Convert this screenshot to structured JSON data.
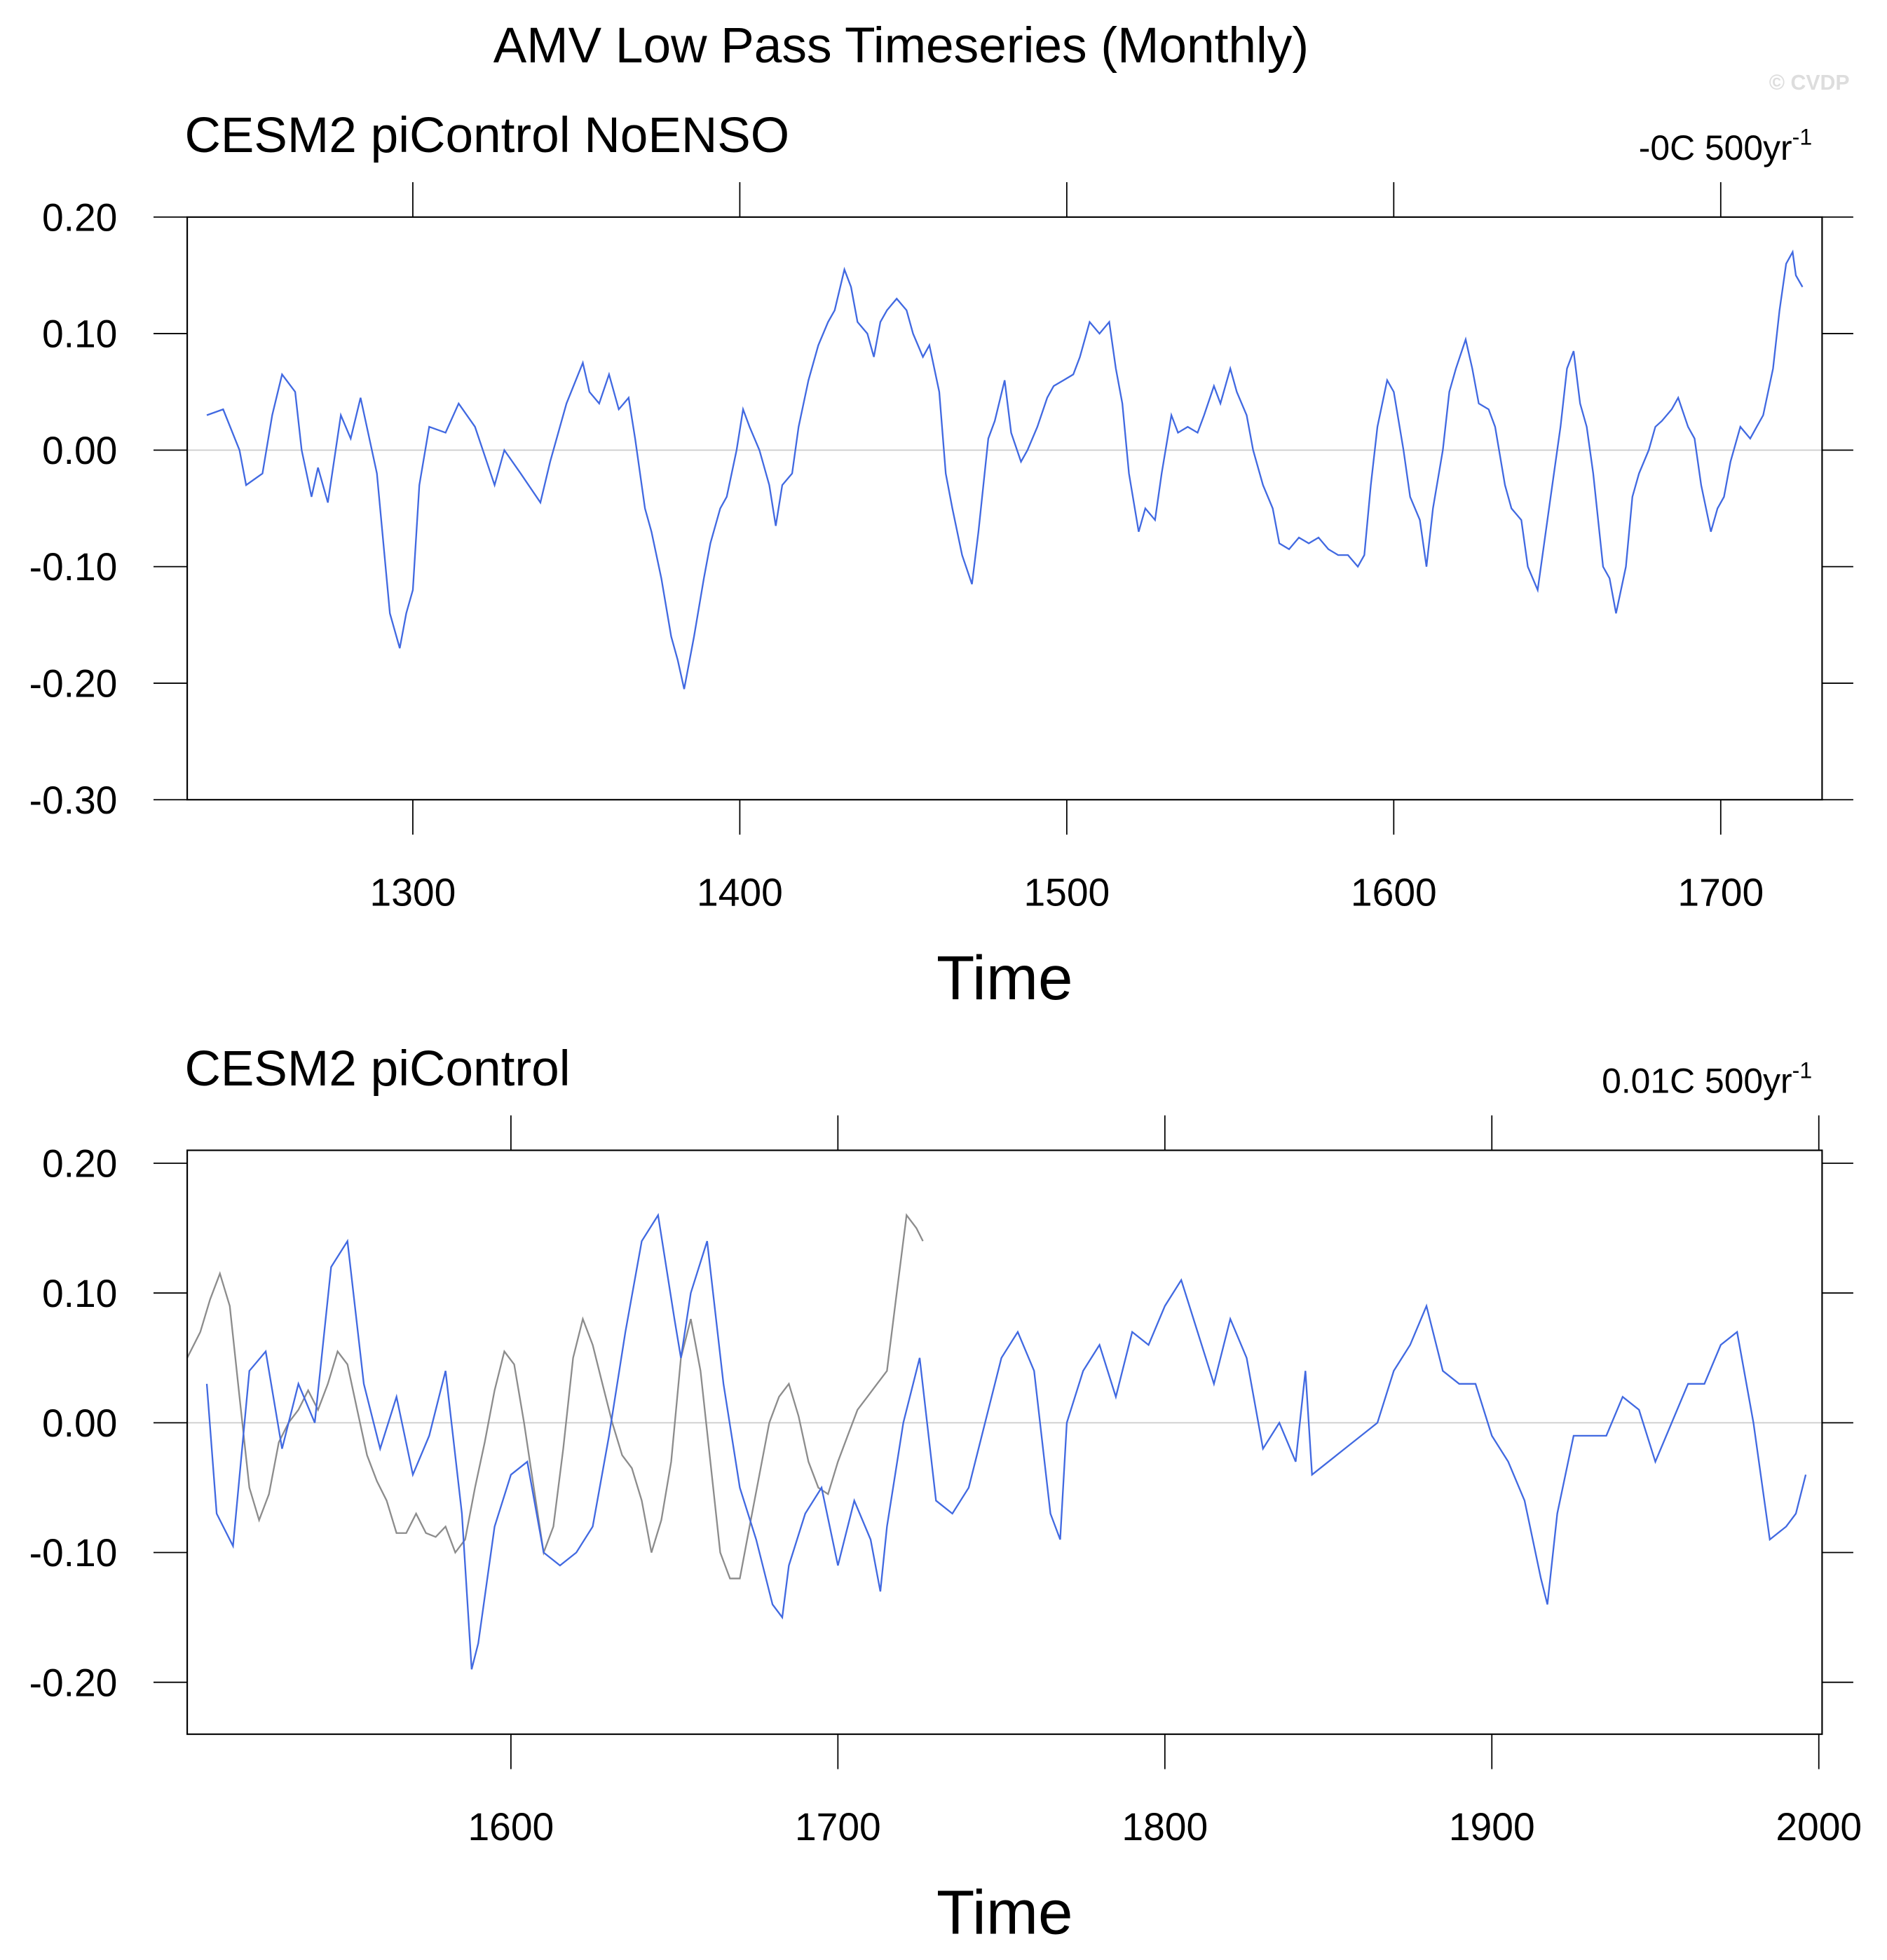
{
  "chart_data": [
    {
      "type": "line",
      "title": "AMV Low Pass Timeseries (Monthly)",
      "credit": "© CVDP",
      "subtitle": "CESM2 piControl NoENSO",
      "trend": "-0C 500yr",
      "trend_sup": "-1",
      "x_label": "Time",
      "xlim": [
        1231,
        1731
      ],
      "ylim": [
        -0.3,
        0.2
      ],
      "xticks": [
        1300,
        1400,
        1500,
        1600,
        1700
      ],
      "yticks": [
        {
          "value": 0.2,
          "label": "0.20"
        },
        {
          "value": 0.1,
          "label": "0.10"
        },
        {
          "value": 0,
          "label": "0.00"
        },
        {
          "value": -0.1,
          "label": "-0.10"
        },
        {
          "value": -0.2,
          "label": "-0.20"
        },
        {
          "value": -0.3,
          "label": "-0.30"
        }
      ],
      "reference_line": 0,
      "series": [
        {
          "color": "#4169e1",
          "x": [
            1237,
            1242,
            1247,
            1249,
            1254,
            1257,
            1260,
            1264,
            1266,
            1269,
            1271,
            1274,
            1278,
            1281,
            1284,
            1289,
            1291,
            1293,
            1296,
            1298,
            1300,
            1302,
            1305,
            1310,
            1314,
            1319,
            1325,
            1328,
            1333,
            1339,
            1342,
            1347,
            1352,
            1354,
            1357,
            1360,
            1363,
            1366,
            1368,
            1371,
            1373,
            1376,
            1379,
            1381,
            1383,
            1386,
            1389,
            1391,
            1394,
            1396,
            1399,
            1401,
            1403,
            1406,
            1409,
            1411,
            1413,
            1416,
            1418,
            1421,
            1424,
            1427,
            1429,
            1432,
            1434,
            1436,
            1439,
            1441,
            1443,
            1445,
            1448,
            1451,
            1453,
            1456,
            1458,
            1461,
            1463,
            1465,
            1468,
            1471,
            1473,
            1476,
            1478,
            1481,
            1483,
            1486,
            1488,
            1491,
            1494,
            1496,
            1499,
            1502,
            1504,
            1507,
            1510,
            1513,
            1515,
            1517,
            1519,
            1522,
            1524,
            1527,
            1529,
            1532,
            1534,
            1537,
            1540,
            1542,
            1545,
            1547,
            1550,
            1552,
            1555,
            1557,
            1560,
            1563,
            1565,
            1568,
            1571,
            1574,
            1577,
            1580,
            1583,
            1586,
            1589,
            1591,
            1593,
            1595,
            1598,
            1600,
            1603,
            1605,
            1608,
            1610,
            1612,
            1615,
            1617,
            1619,
            1622,
            1624,
            1626,
            1629,
            1631,
            1634,
            1636,
            1639,
            1641,
            1644,
            1646,
            1648,
            1651,
            1653,
            1655,
            1657,
            1659,
            1661,
            1664,
            1666,
            1668,
            1671,
            1673,
            1675,
            1678,
            1680,
            1682,
            1685,
            1687,
            1690,
            1692,
            1694,
            1697,
            1699,
            1701,
            1703,
            1706,
            1709,
            1711,
            1713,
            1716,
            1718,
            1720,
            1722,
            1723,
            1725
          ],
          "values": [
            0.03,
            0.035,
            0.0,
            -0.03,
            -0.02,
            0.03,
            0.065,
            0.05,
            0.0,
            -0.04,
            -0.015,
            -0.045,
            0.03,
            0.01,
            0.045,
            -0.02,
            -0.08,
            -0.14,
            -0.17,
            -0.14,
            -0.12,
            -0.03,
            0.02,
            0.015,
            0.04,
            0.02,
            -0.03,
            0.0,
            -0.02,
            -0.045,
            -0.01,
            0.04,
            0.075,
            0.05,
            0.04,
            0.065,
            0.035,
            0.045,
            0.01,
            -0.05,
            -0.07,
            -0.11,
            -0.16,
            -0.18,
            -0.205,
            -0.16,
            -0.11,
            -0.08,
            -0.05,
            -0.04,
            0.0,
            0.035,
            0.02,
            0.0,
            -0.03,
            -0.065,
            -0.03,
            -0.02,
            0.02,
            0.06,
            0.09,
            0.11,
            0.12,
            0.155,
            0.14,
            0.11,
            0.1,
            0.08,
            0.11,
            0.12,
            0.13,
            0.12,
            0.1,
            0.08,
            0.09,
            0.05,
            -0.02,
            -0.05,
            -0.09,
            -0.115,
            -0.07,
            0.01,
            0.025,
            0.06,
            0.015,
            -0.01,
            0.0,
            0.02,
            0.045,
            0.055,
            0.06,
            0.065,
            0.08,
            0.11,
            0.1,
            0.11,
            0.07,
            0.04,
            -0.02,
            -0.07,
            -0.05,
            -0.06,
            -0.02,
            0.03,
            0.015,
            0.02,
            0.015,
            0.03,
            0.055,
            0.04,
            0.07,
            0.05,
            0.03,
            0.0,
            -0.03,
            -0.05,
            -0.08,
            -0.085,
            -0.075,
            -0.08,
            -0.075,
            -0.085,
            -0.09,
            -0.09,
            -0.1,
            -0.09,
            -0.03,
            0.02,
            0.06,
            0.05,
            0.0,
            -0.04,
            -0.06,
            -0.1,
            -0.05,
            0.0,
            0.05,
            0.07,
            0.095,
            0.07,
            0.04,
            0.035,
            0.02,
            -0.03,
            -0.05,
            -0.06,
            -0.1,
            -0.12,
            -0.08,
            -0.04,
            0.02,
            0.07,
            0.085,
            0.04,
            0.02,
            -0.02,
            -0.1,
            -0.11,
            -0.14,
            -0.1,
            -0.04,
            -0.02,
            0.0,
            0.02,
            0.025,
            0.035,
            0.045,
            0.02,
            0.01,
            -0.03,
            -0.07,
            -0.05,
            -0.04,
            -0.01,
            0.02,
            0.01,
            0.02,
            0.03,
            0.07,
            0.12,
            0.16,
            0.17,
            0.15,
            0.14
          ]
        }
      ]
    },
    {
      "type": "line",
      "subtitle": "CESM2 piControl",
      "trend": "0.01C 500yr",
      "trend_sup": "-1",
      "x_label": "Time",
      "xlim": [
        1501,
        2001
      ],
      "ylim": [
        -0.24,
        0.21
      ],
      "xticks": [
        1600,
        1700,
        1800,
        1900,
        2000
      ],
      "yticks": [
        {
          "value": 0.2,
          "label": "0.20"
        },
        {
          "value": 0.1,
          "label": "0.10"
        },
        {
          "value": 0,
          "label": "0.00"
        },
        {
          "value": -0.1,
          "label": "-0.10"
        },
        {
          "value": -0.2,
          "label": "-0.20"
        }
      ],
      "reference_line": 0,
      "series": [
        {
          "color": "#8c8c8c",
          "x": [
            1501,
            1505,
            1508,
            1511,
            1514,
            1517,
            1520,
            1523,
            1526,
            1529,
            1532,
            1535,
            1538,
            1541,
            1544,
            1547,
            1550,
            1553,
            1556,
            1559,
            1562,
            1565,
            1568,
            1571,
            1574,
            1577,
            1580,
            1583,
            1586,
            1589,
            1592,
            1595,
            1598,
            1601,
            1604,
            1607,
            1610,
            1613,
            1616,
            1619,
            1622,
            1625,
            1628,
            1631,
            1634,
            1637,
            1640,
            1643,
            1646,
            1649,
            1652,
            1655,
            1658,
            1661,
            1664,
            1667,
            1670,
            1673,
            1676,
            1679,
            1682,
            1685,
            1688,
            1691,
            1694,
            1697,
            1700,
            1703,
            1706,
            1709,
            1712,
            1715,
            1718,
            1721,
            1724,
            1726
          ],
          "values": [
            0.05,
            0.07,
            0.095,
            0.115,
            0.09,
            0.02,
            -0.05,
            -0.075,
            -0.055,
            -0.015,
            0.0,
            0.01,
            0.025,
            0.01,
            0.03,
            0.055,
            0.045,
            0.01,
            -0.025,
            -0.045,
            -0.06,
            -0.085,
            -0.085,
            -0.07,
            -0.085,
            -0.088,
            -0.08,
            -0.1,
            -0.09,
            -0.05,
            -0.015,
            0.025,
            0.055,
            0.045,
            0.0,
            -0.05,
            -0.1,
            -0.08,
            -0.02,
            0.05,
            0.08,
            0.06,
            0.03,
            0.0,
            -0.025,
            -0.035,
            -0.06,
            -0.1,
            -0.075,
            -0.03,
            0.05,
            0.08,
            0.04,
            -0.03,
            -0.1,
            -0.12,
            -0.12,
            -0.08,
            -0.04,
            0.0,
            0.02,
            0.03,
            0.005,
            -0.03,
            -0.05,
            -0.055,
            -0.03,
            -0.01,
            0.01,
            0.02,
            0.03,
            0.04,
            0.1,
            0.16,
            0.15,
            0.14
          ]
        },
        {
          "color": "#4169e1",
          "x": [
            1507,
            1510,
            1515,
            1520,
            1525,
            1530,
            1535,
            1540,
            1545,
            1550,
            1555,
            1560,
            1565,
            1570,
            1575,
            1580,
            1585,
            1588,
            1590,
            1595,
            1600,
            1605,
            1610,
            1615,
            1620,
            1625,
            1630,
            1635,
            1640,
            1645,
            1650,
            1652,
            1655,
            1660,
            1665,
            1670,
            1675,
            1680,
            1683,
            1685,
            1690,
            1695,
            1700,
            1705,
            1710,
            1713,
            1715,
            1720,
            1725,
            1730,
            1735,
            1740,
            1745,
            1750,
            1755,
            1760,
            1765,
            1768,
            1770,
            1775,
            1780,
            1785,
            1790,
            1795,
            1800,
            1805,
            1810,
            1815,
            1820,
            1825,
            1830,
            1835,
            1840,
            1843,
            1845,
            1850,
            1855,
            1860,
            1865,
            1870,
            1875,
            1880,
            1885,
            1890,
            1895,
            1900,
            1905,
            1910,
            1915,
            1917,
            1920,
            1925,
            1930,
            1935,
            1940,
            1945,
            1950,
            1955,
            1960,
            1965,
            1970,
            1975,
            1980,
            1985,
            1990,
            1993,
            1996
          ],
          "values": [
            0.03,
            -0.07,
            -0.095,
            0.04,
            0.055,
            -0.02,
            0.03,
            0.0,
            0.12,
            0.14,
            0.03,
            -0.02,
            0.02,
            -0.04,
            -0.01,
            0.04,
            -0.07,
            -0.19,
            -0.17,
            -0.08,
            -0.04,
            -0.03,
            -0.1,
            -0.11,
            -0.1,
            -0.08,
            -0.01,
            0.07,
            0.14,
            0.16,
            0.08,
            0.05,
            0.1,
            0.14,
            0.03,
            -0.05,
            -0.09,
            -0.14,
            -0.15,
            -0.11,
            -0.07,
            -0.05,
            -0.11,
            -0.06,
            -0.09,
            -0.13,
            -0.08,
            0.0,
            0.05,
            -0.06,
            -0.07,
            -0.05,
            0.0,
            0.05,
            0.07,
            0.04,
            -0.07,
            -0.09,
            0.0,
            0.04,
            0.06,
            0.02,
            0.07,
            0.06,
            0.09,
            0.11,
            0.07,
            0.03,
            0.08,
            0.05,
            -0.02,
            0.0,
            -0.03,
            0.04,
            -0.04,
            -0.03,
            -0.02,
            -0.01,
            0.0,
            0.04,
            0.06,
            0.09,
            0.04,
            0.03,
            0.03,
            -0.01,
            -0.03,
            -0.06,
            -0.12,
            -0.14,
            -0.07,
            -0.01,
            -0.01,
            -0.01,
            0.02,
            0.01,
            -0.03,
            0.0,
            0.03,
            0.03,
            0.06,
            0.07,
            0.0,
            -0.09,
            -0.08,
            -0.07,
            -0.04
          ]
        }
      ]
    }
  ]
}
